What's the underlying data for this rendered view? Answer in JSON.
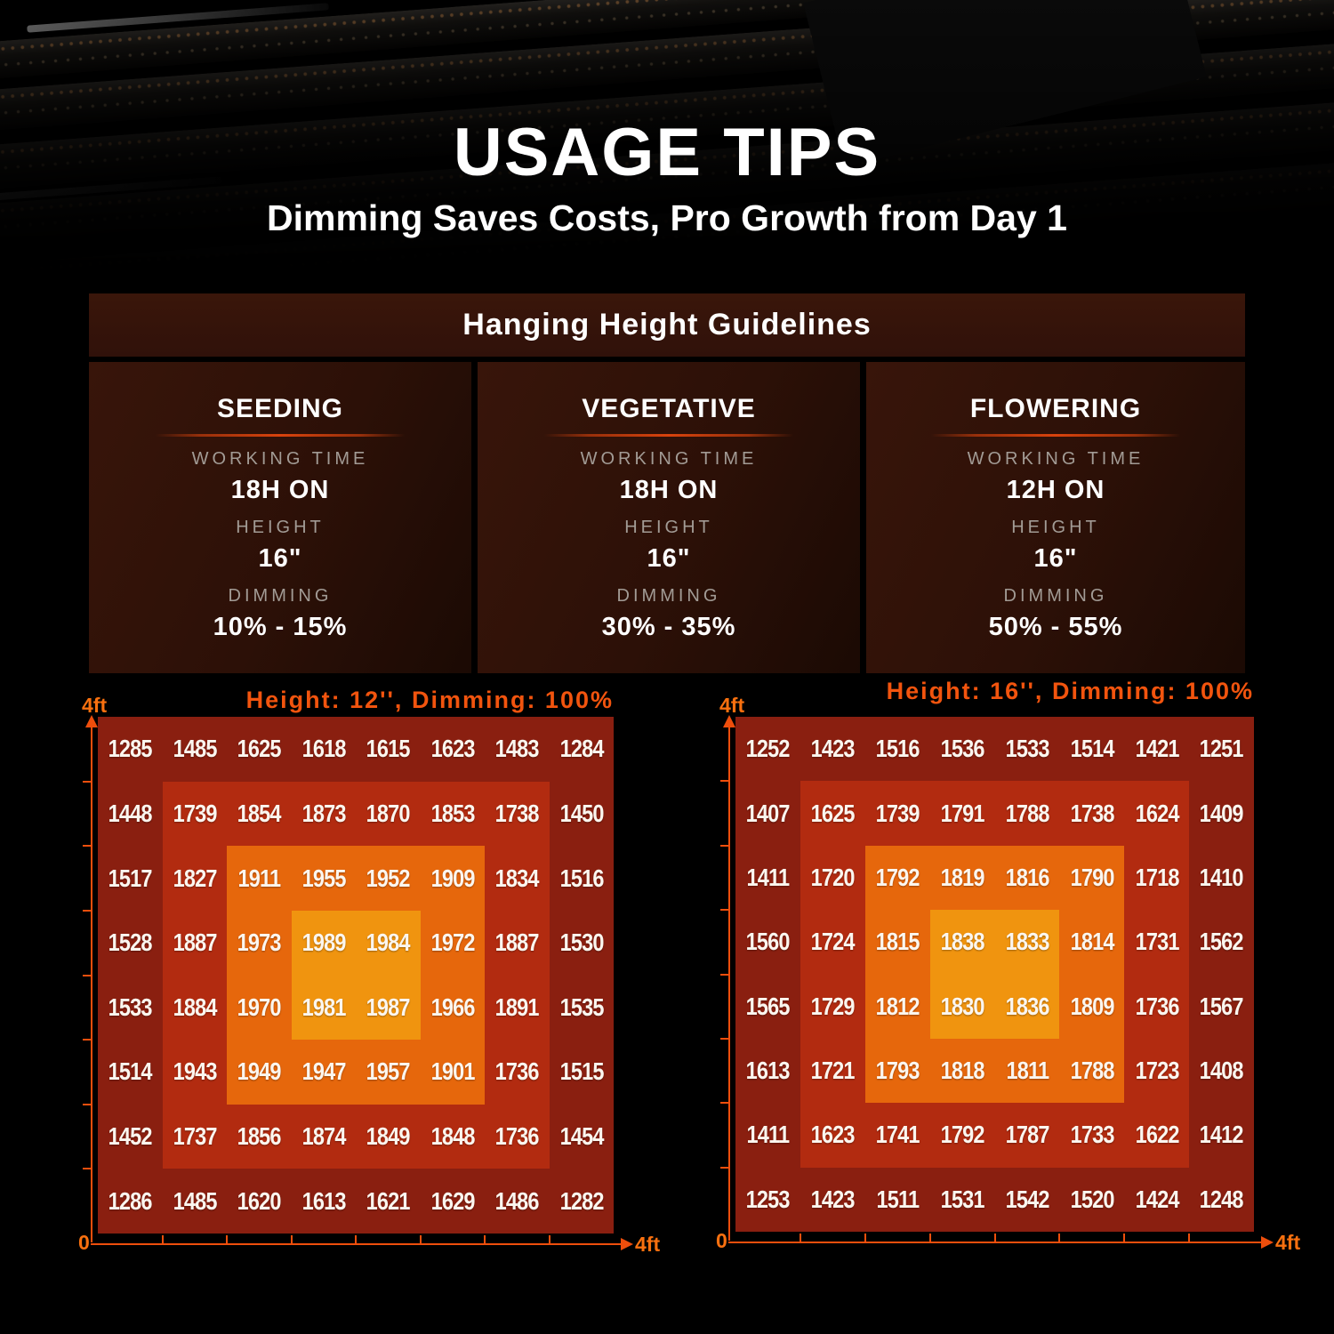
{
  "title": "USAGE TIPS",
  "subtitle": "Dimming Saves Costs, Pro Growth from Day 1",
  "guidelines": {
    "header": "Hanging Height Guidelines",
    "stages": [
      {
        "name": "SEEDING",
        "working_time_label": "WORKING TIME",
        "working_time": "18H ON",
        "height_label": "HEIGHT",
        "height": "16\"",
        "dimming_label": "DIMMING",
        "dimming": "10% - 15%"
      },
      {
        "name": "VEGETATIVE",
        "working_time_label": "WORKING TIME",
        "working_time": "18H ON",
        "height_label": "HEIGHT",
        "height": "16\"",
        "dimming_label": "DIMMING",
        "dimming": "30% - 35%"
      },
      {
        "name": "FLOWERING",
        "working_time_label": "WORKING TIME",
        "working_time": "12H ON",
        "height_label": "HEIGHT",
        "height": "16\"",
        "dimming_label": "DIMMING",
        "dimming": "50% - 55%"
      }
    ]
  },
  "chart_data": [
    {
      "type": "heatmap",
      "title": "Height: 12'', Dimming: 100%",
      "rows": 8,
      "cols": 8,
      "x_axis": {
        "start": "0",
        "end": "4ft",
        "ticks": 7
      },
      "y_axis": {
        "end": "4ft",
        "ticks": 7
      },
      "area": "4ft x 4ft",
      "values": [
        [
          1285,
          1485,
          1625,
          1618,
          1615,
          1623,
          1483,
          1284
        ],
        [
          1448,
          1739,
          1854,
          1873,
          1870,
          1853,
          1738,
          1450
        ],
        [
          1517,
          1827,
          1911,
          1955,
          1952,
          1909,
          1834,
          1516
        ],
        [
          1528,
          1887,
          1973,
          1989,
          1984,
          1972,
          1887,
          1530
        ],
        [
          1533,
          1884,
          1970,
          1981,
          1987,
          1966,
          1891,
          1535
        ],
        [
          1514,
          1943,
          1949,
          1947,
          1957,
          1901,
          1736,
          1515
        ],
        [
          1452,
          1737,
          1856,
          1874,
          1849,
          1848,
          1736,
          1454
        ],
        [
          1286,
          1485,
          1620,
          1613,
          1621,
          1629,
          1486,
          1282
        ]
      ],
      "zone_colors": {
        "outer": "#8A1F10",
        "mid": "#B22B10",
        "inner": "#E6670C",
        "center": "#F0940F"
      }
    },
    {
      "type": "heatmap",
      "title": "Height: 16'', Dimming: 100%",
      "rows": 8,
      "cols": 8,
      "x_axis": {
        "start": "0",
        "end": "4ft",
        "ticks": 7
      },
      "y_axis": {
        "end": "4ft",
        "ticks": 7
      },
      "area": "4ft x 4ft",
      "values": [
        [
          1252,
          1423,
          1516,
          1536,
          1533,
          1514,
          1421,
          1251
        ],
        [
          1407,
          1625,
          1739,
          1791,
          1788,
          1738,
          1624,
          1409
        ],
        [
          1411,
          1720,
          1792,
          1819,
          1816,
          1790,
          1718,
          1410
        ],
        [
          1560,
          1724,
          1815,
          1838,
          1833,
          1814,
          1731,
          1562
        ],
        [
          1565,
          1729,
          1812,
          1830,
          1836,
          1809,
          1736,
          1567
        ],
        [
          1613,
          1721,
          1793,
          1818,
          1811,
          1788,
          1723,
          1408
        ],
        [
          1411,
          1623,
          1741,
          1792,
          1787,
          1733,
          1622,
          1412
        ],
        [
          1253,
          1423,
          1511,
          1531,
          1542,
          1520,
          1424,
          1248
        ]
      ],
      "zone_colors": {
        "outer": "#8A1F10",
        "mid": "#B22B10",
        "inner": "#E6670C",
        "center": "#F0940F"
      }
    }
  ],
  "colors": {
    "axis": "#EE4E0C",
    "axis-label": "#F8700F",
    "chart-title": "#F2540E",
    "panel-bg": "#36130A",
    "label-gray": "#A29B95"
  }
}
